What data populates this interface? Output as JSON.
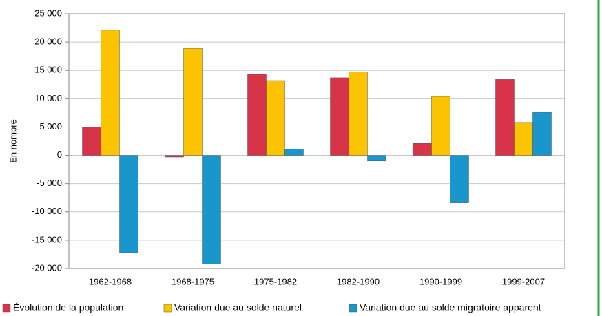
{
  "chart_data": {
    "type": "bar",
    "y_label": "En nombre",
    "categories": [
      "1962-1968",
      "1968-1975",
      "1975-1982",
      "1982-1990",
      "1990-1999",
      "1999-2007"
    ],
    "series": [
      {
        "name": "Évolution de la population",
        "color": "#d7344a",
        "values": [
          5000,
          -300,
          14300,
          13700,
          2100,
          13400
        ]
      },
      {
        "name": "Variation due au solde naturel",
        "color": "#fcc400",
        "values": [
          22100,
          18900,
          13200,
          14700,
          10400,
          5800
        ]
      },
      {
        "name": "Variation due au solde migratoire apparent",
        "color": "#1996cc",
        "values": [
          -17200,
          -19200,
          1100,
          -1000,
          -8400,
          7600
        ]
      }
    ],
    "ylim": [
      -20000,
      25000
    ],
    "yticks": [
      {
        "value": -20000,
        "label": "-20 000"
      },
      {
        "value": -15000,
        "label": "-15 000"
      },
      {
        "value": -10000,
        "label": "-10 000"
      },
      {
        "value": -5000,
        "label": "-5 000"
      },
      0,
      {
        "value": 5000,
        "label": "5 000"
      },
      {
        "value": 10000,
        "label": "10 000"
      },
      {
        "value": 15000,
        "label": "15 000"
      },
      {
        "value": 20000,
        "label": "20 000"
      },
      {
        "value": 25000,
        "label": "25 000"
      }
    ],
    "grid": true
  }
}
